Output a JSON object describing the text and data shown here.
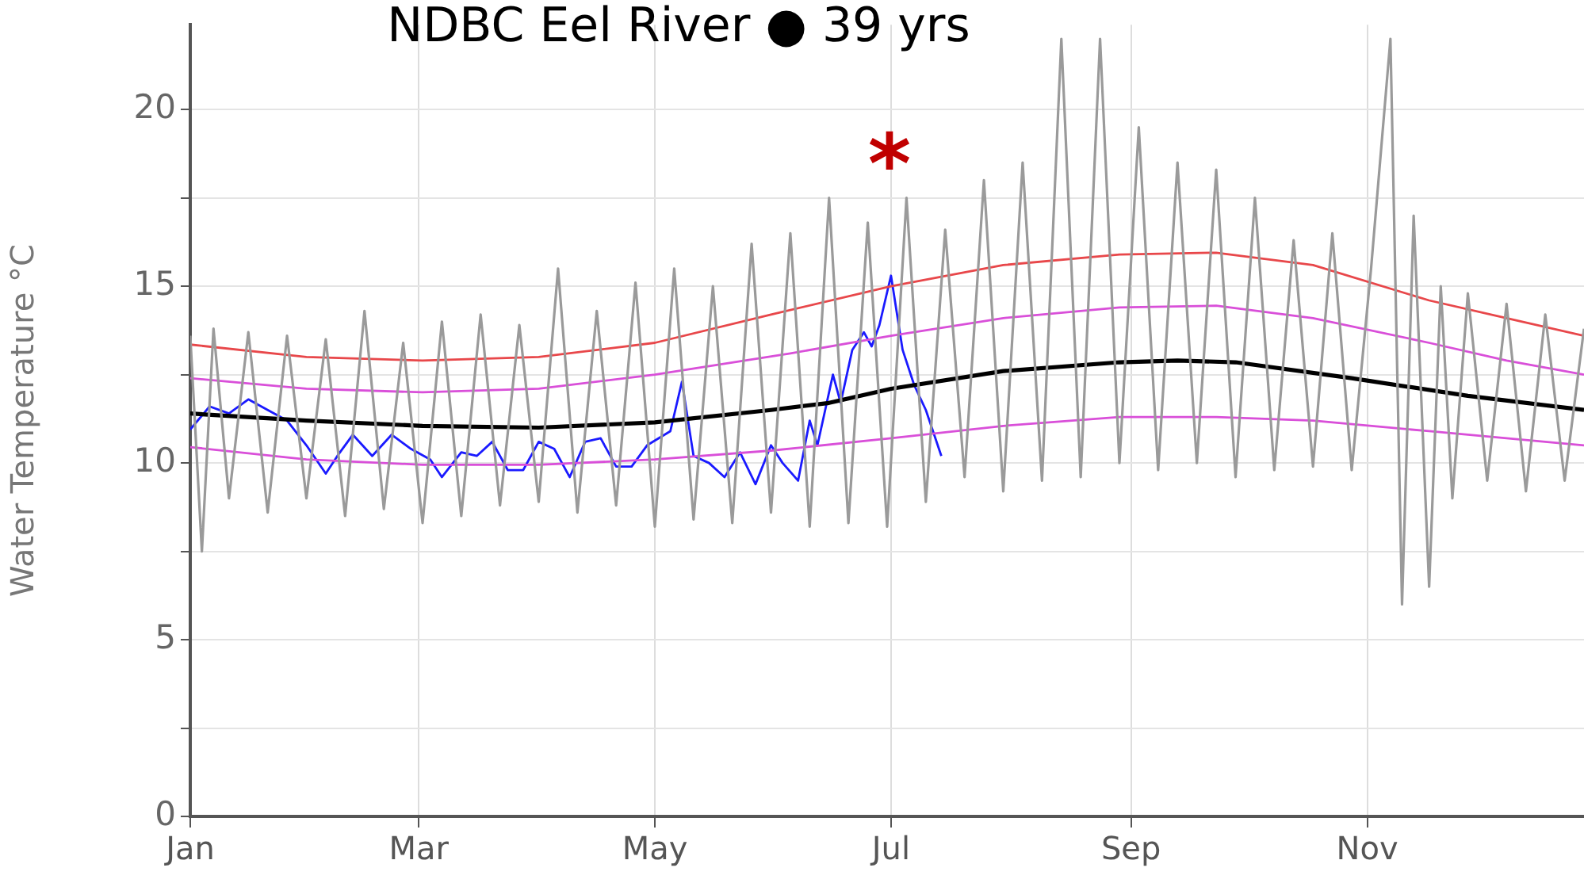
{
  "chart_data": {
    "type": "line",
    "title": "NDBC Eel River ● 39 yrs",
    "ylabel": "Water Temperature °C",
    "xlim": [
      "--01-01",
      "--12-27"
    ],
    "xticks": [
      {
        "value": "--01-01",
        "label": "Jan"
      },
      {
        "value": "--03-01",
        "label": "Mar"
      },
      {
        "value": "--05-01",
        "label": "May"
      },
      {
        "value": "--07-01",
        "label": "Jul"
      },
      {
        "value": "--09-01",
        "label": "Sep"
      },
      {
        "value": "--11-01",
        "label": "Nov"
      }
    ],
    "ylim": [
      0,
      22.4
    ],
    "yticks": [
      0,
      {
        "value": 2.5,
        "label": null
      },
      5,
      {
        "value": 7.5,
        "label": null
      },
      10,
      {
        "value": 12.5,
        "label": null
      },
      15,
      {
        "value": 17.5,
        "label": null
      },
      20
    ],
    "grid": true,
    "legend": false,
    "marker": "none",
    "annotations": [
      "*"
    ],
    "series": [
      {
        "color": "#9a9a9a",
        "x": [
          "--01-01",
          "--01-04",
          "--01-07",
          "--01-11",
          "--01-16",
          "--01-21",
          "--01-26",
          "--01-31",
          "--02-05",
          "--02-10",
          "--02-15",
          "--02-20",
          "--02-25",
          "--03-02",
          "--03-07",
          "--03-12",
          "--03-17",
          "--03-22",
          "--03-27",
          "--04-01",
          "--04-06",
          "--04-11",
          "--04-16",
          "--04-21",
          "--04-26",
          "--05-01",
          "--05-06",
          "--05-11",
          "--05-16",
          "--05-21",
          "--05-26",
          "--05-31",
          "--06-05",
          "--06-10",
          "--06-15",
          "--06-20",
          "--06-25",
          "--06-30",
          "--07-05",
          "--07-10",
          "--07-15",
          "--07-20",
          "--07-25",
          "--07-30",
          "--08-04",
          "--08-09",
          "--08-14",
          "--08-19",
          "--08-24",
          "--08-29",
          "--09-03",
          "--09-08",
          "--09-13",
          "--09-18",
          "--09-23",
          "--09-28",
          "--10-03",
          "--10-08",
          "--10-13",
          "--10-18",
          "--10-23",
          "--10-28",
          "--11-02",
          "--11-07",
          "--11-10",
          "--11-13",
          "--11-17",
          "--11-20",
          "--11-23",
          "--11-27",
          "--12-02",
          "--12-07",
          "--12-12",
          "--12-17",
          "--12-22",
          "--12-27"
        ],
        "values": [
          13.6,
          7.5,
          13.8,
          9.0,
          13.7,
          8.6,
          13.6,
          9.0,
          13.5,
          8.5,
          14.3,
          8.7,
          13.4,
          8.3,
          14.0,
          8.5,
          14.2,
          8.8,
          13.9,
          8.9,
          15.5,
          8.6,
          14.3,
          8.8,
          15.1,
          8.2,
          15.5,
          8.4,
          15.0,
          8.3,
          16.2,
          8.6,
          16.5,
          8.2,
          17.5,
          8.3,
          16.8,
          8.2,
          17.5,
          8.9,
          16.6,
          9.6,
          18.0,
          9.2,
          18.5,
          9.5,
          22.0,
          9.6,
          22.0,
          10.0,
          19.5,
          9.8,
          18.5,
          10.0,
          18.3,
          9.6,
          17.5,
          9.8,
          16.3,
          9.9,
          16.5,
          9.8,
          15.5,
          22.0,
          6.0,
          17.0,
          6.5,
          15.0,
          9.0,
          14.8,
          9.5,
          14.5,
          9.2,
          14.2,
          9.5,
          13.8
        ]
      },
      {
        "color": "#e8474a",
        "x": [
          "--01-01",
          "--01-31",
          "--03-02",
          "--04-01",
          "--05-01",
          "--05-31",
          "--07-01",
          "--07-30",
          "--08-29",
          "--09-23",
          "--10-18",
          "--11-17",
          "--12-07",
          "--12-27"
        ],
        "values": [
          13.35,
          13.0,
          12.9,
          13.0,
          13.4,
          14.2,
          15.0,
          15.6,
          15.9,
          15.95,
          15.6,
          14.6,
          14.1,
          13.6
        ]
      },
      {
        "color": "#d94fd9",
        "x": [
          "--01-01",
          "--01-31",
          "--03-02",
          "--04-01",
          "--05-01",
          "--06-05",
          "--07-01",
          "--07-30",
          "--08-29",
          "--09-23",
          "--10-18",
          "--11-17",
          "--12-07",
          "--12-27"
        ],
        "values": [
          12.4,
          12.1,
          12.0,
          12.1,
          12.5,
          13.1,
          13.6,
          14.1,
          14.4,
          14.45,
          14.1,
          13.4,
          12.9,
          12.5
        ]
      },
      {
        "color": "#d94fd9",
        "x": [
          "--01-01",
          "--01-31",
          "--03-02",
          "--04-01",
          "--05-01",
          "--05-31",
          "--07-01",
          "--07-30",
          "--08-29",
          "--09-23",
          "--10-18",
          "--11-17",
          "--12-07",
          "--12-27"
        ],
        "values": [
          10.45,
          10.1,
          9.95,
          9.95,
          10.1,
          10.35,
          10.7,
          11.05,
          11.3,
          11.3,
          11.2,
          10.9,
          10.7,
          10.5
        ]
      },
      {
        "color": "#000000",
        "x": [
          "--01-01",
          "--01-31",
          "--03-02",
          "--04-01",
          "--05-01",
          "--05-31",
          "--06-15",
          "--07-01",
          "--07-30",
          "--08-29",
          "--09-13",
          "--09-28",
          "--10-28",
          "--11-27",
          "--12-27"
        ],
        "values": [
          11.4,
          11.2,
          11.05,
          11.0,
          11.15,
          11.5,
          11.7,
          12.1,
          12.6,
          12.85,
          12.9,
          12.85,
          12.4,
          11.9,
          11.5
        ]
      },
      {
        "color": "#1a1aff",
        "x": [
          "--01-01",
          "--01-06",
          "--01-11",
          "--01-16",
          "--01-21",
          "--01-26",
          "--01-31",
          "--02-05",
          "--02-08",
          "--02-12",
          "--02-17",
          "--02-22",
          "--02-27",
          "--03-04",
          "--03-07",
          "--03-12",
          "--03-16",
          "--03-20",
          "--03-24",
          "--03-28",
          "--04-01",
          "--04-05",
          "--04-09",
          "--04-13",
          "--04-17",
          "--04-21",
          "--04-25",
          "--04-29",
          "--05-05",
          "--05-08",
          "--05-11",
          "--05-15",
          "--05-19",
          "--05-23",
          "--05-27",
          "--05-31",
          "--06-03",
          "--06-07",
          "--06-10",
          "--06-12",
          "--06-16",
          "--06-18",
          "--06-21",
          "--06-24",
          "--06-26",
          "--06-28",
          "--07-01",
          "--07-04",
          "--07-07",
          "--07-10",
          "--07-14"
        ],
        "values": [
          10.95,
          11.6,
          11.4,
          11.8,
          11.5,
          11.2,
          10.5,
          9.7,
          10.2,
          10.8,
          10.2,
          10.8,
          10.4,
          10.1,
          9.6,
          10.3,
          10.2,
          10.6,
          9.8,
          9.8,
          10.6,
          10.4,
          9.6,
          10.6,
          10.7,
          9.9,
          9.9,
          10.5,
          10.9,
          12.3,
          10.2,
          10.0,
          9.6,
          10.3,
          9.4,
          10.5,
          10.0,
          9.5,
          11.2,
          10.5,
          12.5,
          11.7,
          13.2,
          13.7,
          13.3,
          13.9,
          15.3,
          13.2,
          12.2,
          11.5,
          10.2
        ]
      }
    ]
  }
}
